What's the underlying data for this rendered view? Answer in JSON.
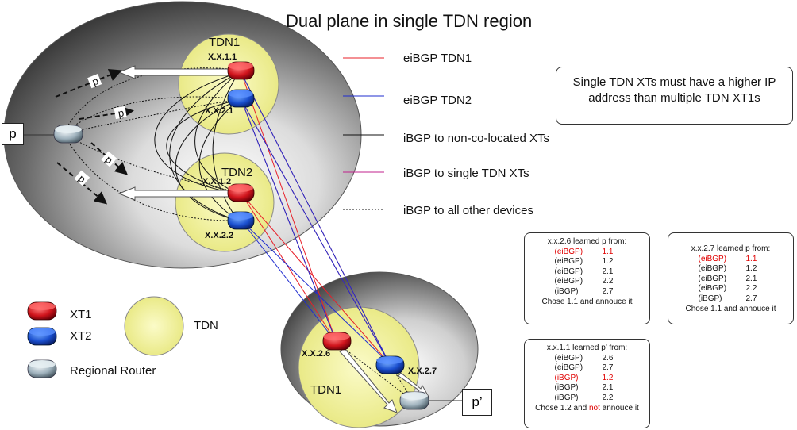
{
  "title": "Dual plane in single TDN region",
  "regions": {
    "top_tdn1_label": "TDN1",
    "top_tdn2_label": "TDN2",
    "bottom_tdn1_label": "TDN1"
  },
  "routers": {
    "xt1_a": "X.X.1.1",
    "xt2_a": "X.X.2.1",
    "xt1_b": "X.X.1.2",
    "xt2_b": "X.X.2.2",
    "xt1_c": "X.X.2.6",
    "xt2_c": "X.X.2.7"
  },
  "prefixes": {
    "p_box": "p",
    "p_prime_box": "p’",
    "arrow_label": "p"
  },
  "line_legend": [
    {
      "label": "eiBGP TDN1",
      "color": "#e8202a",
      "style": "solid"
    },
    {
      "label": "eiBGP TDN2",
      "color": "#1f2ccf",
      "style": "solid"
    },
    {
      "label": "iBGP to non-co-located XTs",
      "color": "#111111",
      "style": "solid"
    },
    {
      "label": "iBGP to single TDN XTs",
      "color": "#c0208c",
      "style": "solid"
    },
    {
      "label": "iBGP to all other devices",
      "color": "#111111",
      "style": "dotted"
    }
  ],
  "device_legend": {
    "xt1": "XT1",
    "xt2": "XT2",
    "regional_router": "Regional Router",
    "tdn": "TDN"
  },
  "note": "Single TDN XTs must have a higher IP address than multiple TDN XT1s",
  "info_boxes": {
    "x26": {
      "heading": "x.x.2.6 learned p from:",
      "rows": [
        {
          "type": "(eiBGP)",
          "from": "1.1",
          "highlight": true
        },
        {
          "type": "(eiBGP)",
          "from": "1.2",
          "highlight": false
        },
        {
          "type": "(eiBGP)",
          "from": "2.1",
          "highlight": false
        },
        {
          "type": "(eiBGP)",
          "from": "2.2",
          "highlight": false
        },
        {
          "type": "(iBGP)",
          "from": "2.7",
          "highlight": false
        }
      ],
      "footer": "Chose 1.1 and annouce it"
    },
    "x27": {
      "heading": "x.x.2.7 learned p from:",
      "rows": [
        {
          "type": "(eiBGP)",
          "from": "1.1",
          "highlight": true
        },
        {
          "type": "(eiBGP)",
          "from": "1.2",
          "highlight": false
        },
        {
          "type": "(eiBGP)",
          "from": "2.1",
          "highlight": false
        },
        {
          "type": "(eiBGP)",
          "from": "2.2",
          "highlight": false
        },
        {
          "type": "(iBGP)",
          "from": "2.7",
          "highlight": false
        }
      ],
      "footer": "Chose 1.1 and annouce it"
    },
    "x11": {
      "heading": "x.x.1.1 learned p’ from:",
      "rows": [
        {
          "type": "(eiBGP)",
          "from": "2.6",
          "highlight": false
        },
        {
          "type": "(eiBGP)",
          "from": "2.7",
          "highlight": false
        },
        {
          "type": "(iBGP)",
          "from": "1.2",
          "highlight": true
        },
        {
          "type": "(iBGP)",
          "from": "2.1",
          "highlight": false
        },
        {
          "type": "(iBGP)",
          "from": "2.2",
          "highlight": false
        }
      ],
      "footer_pre": "Chose 1.2 and ",
      "footer_red": "not",
      "footer_post": " annouce it"
    }
  }
}
